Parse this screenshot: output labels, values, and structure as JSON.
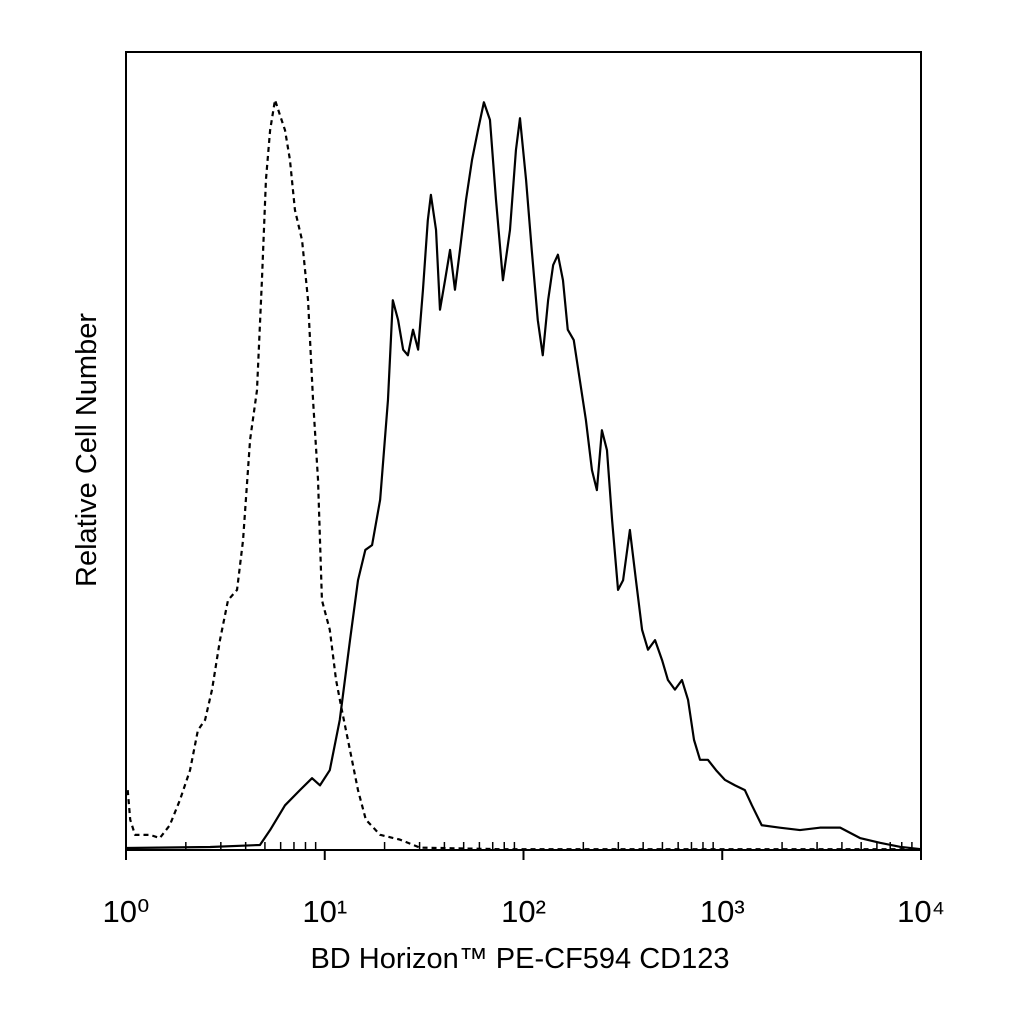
{
  "chart_data": {
    "type": "line",
    "x_label": "BD Horizon™ PE-CF594 CD123",
    "y_label": "Relative Cell Number",
    "xscale": "log",
    "xlim": [
      1,
      10000
    ],
    "ylim": [
      0,
      100
    ],
    "xticks": [
      {
        "value": 1,
        "label": "10⁰"
      },
      {
        "value": 10,
        "label": "10¹"
      },
      {
        "value": 100,
        "label": "10²"
      },
      {
        "value": 1000,
        "label": "10³"
      },
      {
        "value": 10000,
        "label": "10⁴"
      }
    ],
    "xminorticks": [
      2,
      3,
      4,
      5,
      6,
      7,
      8,
      9,
      20,
      30,
      40,
      50,
      60,
      70,
      80,
      90,
      200,
      300,
      400,
      500,
      600,
      700,
      800,
      900,
      2000,
      3000,
      4000,
      5000,
      6000,
      7000,
      8000,
      9000
    ],
    "grid": false,
    "series": [
      {
        "color": "#000000",
        "line_style": "solid",
        "x": [
          1.0,
          2.65,
          4.72,
          5.31,
          6.31,
          7.5,
          8.63,
          9.46,
          10.6,
          11.9,
          13.4,
          14.7,
          16.0,
          17.3,
          19.0,
          20.8,
          22.0,
          23.4,
          24.8,
          26.2,
          27.8,
          29.5,
          31.2,
          33.0,
          34.2,
          36.3,
          38.0,
          40.3,
          42.7,
          45.2,
          47.9,
          51.4,
          55.1,
          59.0,
          63.2,
          67.8,
          72.7,
          78.8,
          85.5,
          91.6,
          96.0,
          103,
          110,
          118,
          125,
          133,
          141,
          149,
          158,
          167,
          179,
          192,
          206,
          221,
          234,
          248,
          263,
          279,
          299,
          317,
          343,
          368,
          395,
          423,
          459,
          498,
          533,
          578,
          627,
          673,
          721,
          773,
          847,
          931,
          1030,
          1160,
          1300,
          1410,
          1580,
          1950,
          2460,
          3100,
          3920,
          4930,
          6220,
          7840,
          10000
        ],
        "values": [
          0.25,
          0.38,
          0.63,
          2.5,
          5.6,
          7.5,
          9.0,
          8.1,
          10.0,
          16.3,
          26.3,
          33.8,
          37.6,
          38.2,
          43.9,
          56.4,
          68.9,
          66.4,
          62.7,
          62.0,
          65.2,
          62.7,
          70.2,
          78.9,
          82.1,
          77.7,
          67.7,
          71.4,
          75.2,
          70.2,
          75.2,
          81.5,
          86.5,
          90.2,
          93.7,
          91.5,
          81.5,
          71.4,
          77.7,
          87.7,
          91.7,
          84.0,
          75.2,
          66.4,
          62.0,
          68.9,
          73.3,
          74.6,
          71.4,
          65.2,
          63.9,
          58.9,
          53.9,
          47.6,
          45.1,
          52.6,
          50.1,
          41.4,
          32.6,
          33.8,
          40.1,
          33.8,
          27.6,
          25.1,
          26.3,
          23.8,
          21.3,
          20.1,
          21.3,
          18.8,
          13.8,
          11.3,
          11.3,
          10.0,
          8.8,
          8.1,
          7.5,
          5.6,
          3.1,
          2.8,
          2.5,
          2.8,
          2.8,
          1.5,
          0.9,
          0.4,
          0.1
        ]
      },
      {
        "color": "#000000",
        "line_style": "dashed",
        "x": [
          1.02,
          1.05,
          1.11,
          1.32,
          1.48,
          1.66,
          1.87,
          2.1,
          2.3,
          2.5,
          2.71,
          2.97,
          3.26,
          3.62,
          3.88,
          4.21,
          4.56,
          4.83,
          5.06,
          5.31,
          5.62,
          5.95,
          6.31,
          6.68,
          7.08,
          7.69,
          8.24,
          8.73,
          9.25,
          9.68,
          10.6,
          11.4,
          12.2,
          13.4,
          14.7,
          16.1,
          19.0,
          23.9,
          30.1,
          76.2,
          10000
        ],
        "values": [
          7.5,
          3.8,
          1.9,
          1.9,
          1.5,
          3.1,
          6.3,
          10.0,
          15.0,
          16.3,
          20.1,
          26.3,
          31.3,
          32.6,
          38.8,
          51.4,
          57.6,
          71.4,
          84.0,
          90.2,
          94.0,
          92.1,
          90.2,
          86.5,
          80.2,
          76.4,
          68.9,
          56.4,
          46.4,
          31.3,
          27.6,
          21.3,
          17.5,
          12.5,
          7.5,
          3.8,
          1.9,
          1.3,
          0.3,
          0.1,
          0.1
        ]
      }
    ]
  }
}
